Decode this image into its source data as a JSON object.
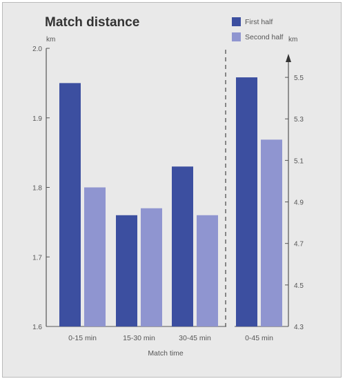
{
  "chart_data": {
    "type": "bar",
    "title": "Match distance",
    "xlabel": "Match time",
    "categories": [
      "0-15 min",
      "15-30 min",
      "30-45 min",
      "0-45 min"
    ],
    "series": [
      {
        "name": "First half",
        "color": "#3c4fa0",
        "values": [
          1.95,
          1.76,
          1.83,
          5.5
        ]
      },
      {
        "name": "Second half",
        "color": "#8f95d0",
        "values": [
          1.8,
          1.77,
          1.76,
          5.2
        ]
      }
    ],
    "left_axis": {
      "unit": "km",
      "ylim": [
        1.6,
        2.0
      ],
      "ticks": [
        "1.6",
        "1.7",
        "1.8",
        "1.9",
        "2.0"
      ],
      "applies_to": [
        "0-15 min",
        "15-30 min",
        "30-45 min"
      ]
    },
    "right_axis": {
      "unit": "km",
      "ylim": [
        4.3,
        5.6
      ],
      "ticks": [
        "4.3",
        "4.5",
        "4.7",
        "4.9",
        "5.1",
        "5.3",
        "5.5"
      ],
      "applies_to": [
        "0-45 min"
      ]
    },
    "legend_position": "top-right",
    "grid": false
  }
}
